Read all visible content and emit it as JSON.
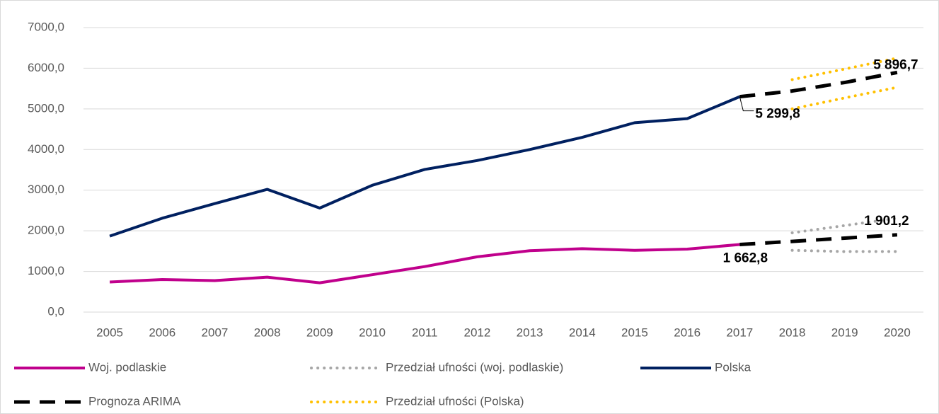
{
  "chart_data": {
    "type": "line",
    "categories": [
      "2005",
      "2006",
      "2007",
      "2008",
      "2009",
      "2010",
      "2011",
      "2012",
      "2013",
      "2014",
      "2015",
      "2016",
      "2017",
      "2018",
      "2019",
      "2020"
    ],
    "ylim": [
      0,
      7000
    ],
    "yticks": [
      {
        "value": 0,
        "label": "0,0"
      },
      {
        "value": 1000,
        "label": "1000,0"
      },
      {
        "value": 2000,
        "label": "2000,0"
      },
      {
        "value": 3000,
        "label": "3000,0"
      },
      {
        "value": 4000,
        "label": "4000,0"
      },
      {
        "value": 5000,
        "label": "5000,0"
      },
      {
        "value": 6000,
        "label": "6000,0"
      },
      {
        "value": 7000,
        "label": "7000,0"
      }
    ],
    "grid": true,
    "series": [
      {
        "name": "Woj. podlaskie",
        "color": "#c0008c",
        "style": "solid",
        "lines": [
          [
            740,
            800,
            775,
            860,
            720,
            920,
            1120,
            1360,
            1510,
            1560,
            1520,
            1550,
            1662.8,
            null,
            null,
            null
          ]
        ]
      },
      {
        "name": "Przedział ufności (woj. podlaskie)",
        "color": "#a6a6a6",
        "style": "dotted",
        "lines": [
          [
            null,
            null,
            null,
            null,
            null,
            null,
            null,
            null,
            null,
            null,
            null,
            null,
            null,
            1950,
            2130,
            2310
          ],
          [
            null,
            null,
            null,
            null,
            null,
            null,
            null,
            null,
            null,
            null,
            null,
            null,
            null,
            1520,
            1490,
            1490
          ]
        ]
      },
      {
        "name": "Polska",
        "color": "#002060",
        "style": "solid",
        "lines": [
          [
            1870,
            2310,
            2670,
            3020,
            2560,
            3120,
            3510,
            3730,
            4000,
            4300,
            4660,
            4760,
            5299.8,
            null,
            null,
            null
          ]
        ]
      },
      {
        "name": "Prognoza ARIMA",
        "color": "#000000",
        "style": "dashed",
        "lines": [
          [
            null,
            null,
            null,
            null,
            null,
            null,
            null,
            null,
            null,
            null,
            null,
            null,
            5299.8,
            5440,
            5650,
            5896.7
          ],
          [
            null,
            null,
            null,
            null,
            null,
            null,
            null,
            null,
            null,
            null,
            null,
            null,
            1662.8,
            1740,
            1820,
            1901.2
          ]
        ]
      },
      {
        "name": "Przedział ufności (Polska)",
        "color": "#ffc000",
        "style": "dotted",
        "lines": [
          [
            null,
            null,
            null,
            null,
            null,
            null,
            null,
            null,
            null,
            null,
            null,
            null,
            null,
            5720,
            5980,
            6250
          ],
          [
            null,
            null,
            null,
            null,
            null,
            null,
            null,
            null,
            null,
            null,
            null,
            null,
            null,
            5000,
            5270,
            5530
          ]
        ]
      }
    ],
    "annotations": [
      {
        "category": "2020",
        "value": 5896.7,
        "label": "5 896,7"
      },
      {
        "category": "2017",
        "value": 5299.8,
        "label": "5 299,8"
      },
      {
        "category": "2017",
        "value": 1662.8,
        "label": "1 662,8"
      },
      {
        "category": "2020",
        "value": 1901.2,
        "label": "1 901,2"
      }
    ]
  }
}
